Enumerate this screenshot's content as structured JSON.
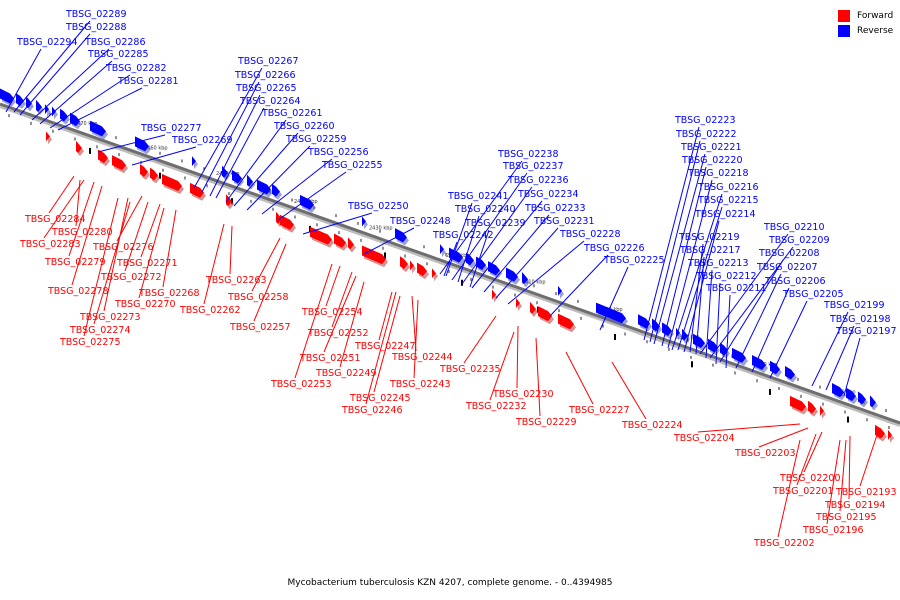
{
  "legend": {
    "forward_label": "Forward",
    "reverse_label": "Reverse",
    "forward_color": "#ff0000",
    "reverse_color": "#0000ff"
  },
  "caption": "Mycobacterium tuberculosis KZN 4207, complete genome. - 0..4394985",
  "scale_marks": [
    "2470 kbp",
    "2460 kbp",
    "2450 kbp",
    "2440 kbp",
    "2430 kbp",
    "2420 kbp",
    "2410 kbp",
    "2400 kbp",
    "2390 kbp",
    "2380 kbp",
    "2370 kbp"
  ],
  "reverse_genes": [
    "TBSG_02289",
    "TBSG_02288",
    "TBSG_02294",
    "TBSG_02286",
    "TBSG_02285",
    "TBSG_02282",
    "TBSG_02281",
    "TBSG_02277",
    "TBSG_02269",
    "TBSG_02267",
    "TBSG_02266",
    "TBSG_02265",
    "TBSG_02264",
    "TBSG_02261",
    "TBSG_02260",
    "TBSG_02259",
    "TBSG_02256",
    "TBSG_02255",
    "TBSG_02250",
    "TBSG_02248",
    "TBSG_02238",
    "TBSG_02237",
    "TBSG_02236",
    "TBSG_02234",
    "TBSG_02241",
    "TBSG_02240",
    "TBSG_02233",
    "TBSG_02239",
    "TBSG_02231",
    "TBSG_02242",
    "TBSG_02228",
    "TBSG_02226",
    "TBSG_02225",
    "TBSG_02223",
    "TBSG_02222",
    "TBSG_02221",
    "TBSG_02220",
    "TBSG_02218",
    "TBSG_02216",
    "TBSG_02215",
    "TBSG_02214",
    "TBSG_02210",
    "TBSG_02209",
    "TBSG_02219",
    "TBSG_02217",
    "TBSG_02208",
    "TBSG_02213",
    "TBSG_02207",
    "TBSG_02212",
    "TBSG_02206",
    "TBSG_02211",
    "TBSG_02205",
    "TBSG_02199",
    "TBSG_02198",
    "TBSG_02197"
  ],
  "forward_genes": [
    "TBSG_02284",
    "TBSG_02280",
    "TBSG_02283",
    "TBSG_02276",
    "TBSG_02279",
    "TBSG_02271",
    "TBSG_02272",
    "TBSG_02278",
    "TBSG_02268",
    "TBSG_02270",
    "TBSG_02263",
    "TBSG_02273",
    "TBSG_02262",
    "TBSG_02258",
    "TBSG_02274",
    "TBSG_02275",
    "TBSG_02257",
    "TBSG_02254",
    "TBSG_02252",
    "TBSG_02251",
    "TBSG_02249",
    "TBSG_02247",
    "TBSG_02244",
    "TBSG_02253",
    "TBSG_02243",
    "TBSG_02245",
    "TBSG_02246",
    "TBSG_02235",
    "TBSG_02230",
    "TBSG_02232",
    "TBSG_02229",
    "TBSG_02227",
    "TBSG_02224",
    "TBSG_02204",
    "TBSG_02203",
    "TBSG_02200",
    "TBSG_02201",
    "TBSG_02193",
    "TBSG_02194",
    "TBSG_02195",
    "TBSG_02196",
    "TBSG_02202"
  ]
}
